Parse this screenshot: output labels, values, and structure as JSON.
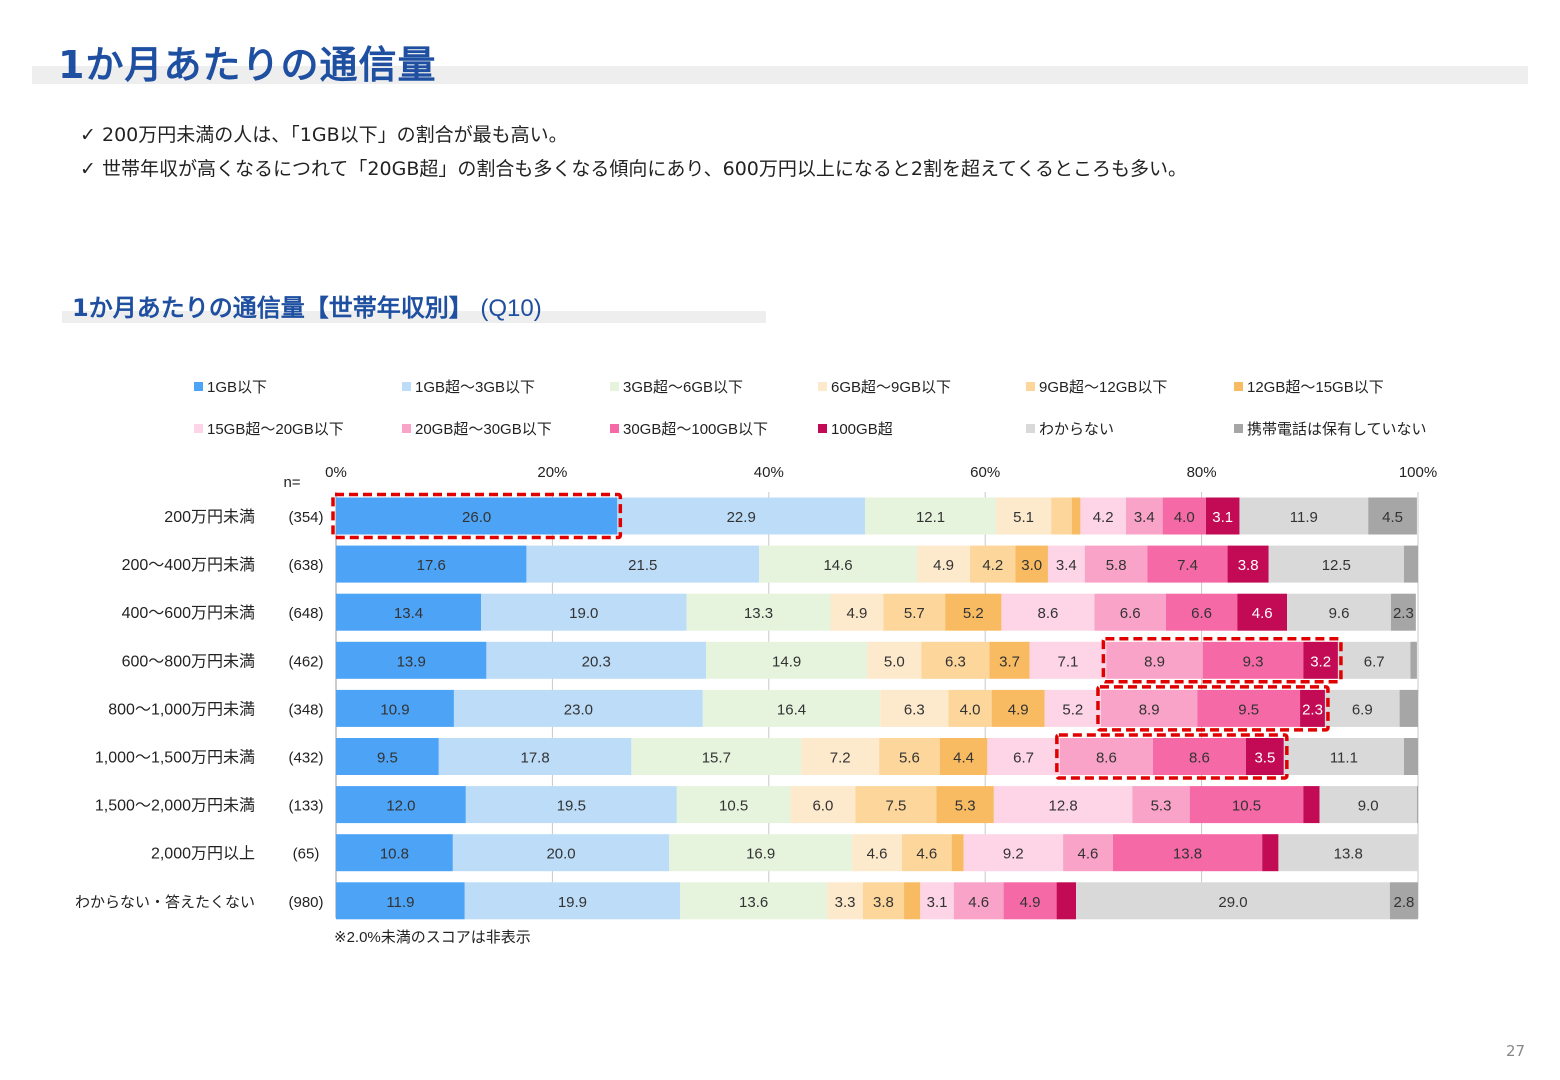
{
  "page": {
    "title": "1か月あたりの通信量",
    "bullets": [
      "200万円未満の人は、「1GB以下」の割合が最も高い。",
      "世帯年収が高くなるにつれて「20GB超」の割合も多くなる傾向にあり、600万円以上になると2割を超えてくるところも多い。"
    ],
    "checkmark": "✓",
    "subtitle": "1か月あたりの通信量【世帯年収別】",
    "subtitle_q": "(Q10)",
    "page_number": "27"
  },
  "chart_data": {
    "type": "bar",
    "orientation": "horizontal",
    "stacked": "percent",
    "n_label": "n=",
    "x_ticks": [
      "0%",
      "20%",
      "40%",
      "60%",
      "80%",
      "100%"
    ],
    "xlim": [
      0,
      100
    ],
    "footnote": "※2.0%未満のスコアは非表示",
    "categories": [
      "200万円未満",
      "200～400万円未満",
      "400～600万円未満",
      "600～800万円未満",
      "800～1,000万円未満",
      "1,000～1,500万円未満",
      "1,500～2,000万円未満",
      "2,000万円以上",
      "わからない・答えたくない"
    ],
    "n_values": [
      "(354)",
      "(638)",
      "(648)",
      "(462)",
      "(348)",
      "(432)",
      "(133)",
      "(65)",
      "(980)"
    ],
    "series": [
      {
        "name": "1GB以下",
        "color": "#4da3f5",
        "values": [
          26.0,
          17.6,
          13.4,
          13.9,
          10.9,
          9.5,
          12.0,
          10.8,
          11.9
        ]
      },
      {
        "name": "1GB超～3GB以下",
        "color": "#bcdcf8",
        "values": [
          22.9,
          21.5,
          19.0,
          20.3,
          23.0,
          17.8,
          19.5,
          20.0,
          19.9
        ]
      },
      {
        "name": "3GB超～6GB以下",
        "color": "#e6f4dd",
        "values": [
          12.1,
          14.6,
          13.3,
          14.9,
          16.4,
          15.7,
          10.5,
          16.9,
          13.6
        ]
      },
      {
        "name": "6GB超～9GB以下",
        "color": "#fde9cc",
        "values": [
          5.1,
          4.9,
          4.9,
          5.0,
          6.3,
          7.2,
          6.0,
          4.6,
          3.3
        ]
      },
      {
        "name": "9GB超～12GB以下",
        "color": "#fcd69b",
        "values": [
          1.9,
          4.2,
          5.7,
          6.3,
          4.0,
          5.6,
          7.5,
          4.6,
          3.8
        ]
      },
      {
        "name": "12GB超～15GB以下",
        "color": "#f9bb62",
        "values": [
          0.8,
          3.0,
          5.2,
          3.7,
          4.9,
          4.4,
          5.3,
          1.1,
          1.5
        ]
      },
      {
        "name": "15GB超～20GB以下",
        "color": "#fdd5e6",
        "values": [
          4.2,
          3.4,
          8.6,
          7.1,
          5.2,
          6.7,
          12.8,
          9.2,
          3.1
        ]
      },
      {
        "name": "20GB超～30GB以下",
        "color": "#f9a3c8",
        "values": [
          3.4,
          5.8,
          6.6,
          8.9,
          8.9,
          8.6,
          5.3,
          4.6,
          4.6
        ]
      },
      {
        "name": "30GB超～100GB以下",
        "color": "#f56aa6",
        "values": [
          4.0,
          7.4,
          6.6,
          9.3,
          9.5,
          8.6,
          10.5,
          13.8,
          4.9
        ]
      },
      {
        "name": "100GB超",
        "color": "#c20a55",
        "values": [
          3.1,
          3.8,
          4.6,
          3.2,
          2.3,
          3.5,
          1.5,
          1.5,
          1.8
        ]
      },
      {
        "name": "わからない",
        "color": "#d9d9d9",
        "values": [
          11.9,
          12.5,
          9.6,
          6.7,
          6.9,
          11.1,
          9.0,
          13.8,
          29.0
        ]
      },
      {
        "name": "携帯電話は保有していない",
        "color": "#a6a6a6",
        "values": [
          4.5,
          1.3,
          2.3,
          0.6,
          1.8,
          1.4,
          0.1,
          0.1,
          2.8
        ]
      }
    ],
    "highlight_boxes": [
      {
        "row": 0,
        "from_series": 0,
        "to_series": 0
      },
      {
        "row": 3,
        "from_series": 7,
        "to_series": 9
      },
      {
        "row": 4,
        "from_series": 7,
        "to_series": 9
      },
      {
        "row": 5,
        "from_series": 7,
        "to_series": 9
      }
    ],
    "label_threshold": 2.0
  }
}
